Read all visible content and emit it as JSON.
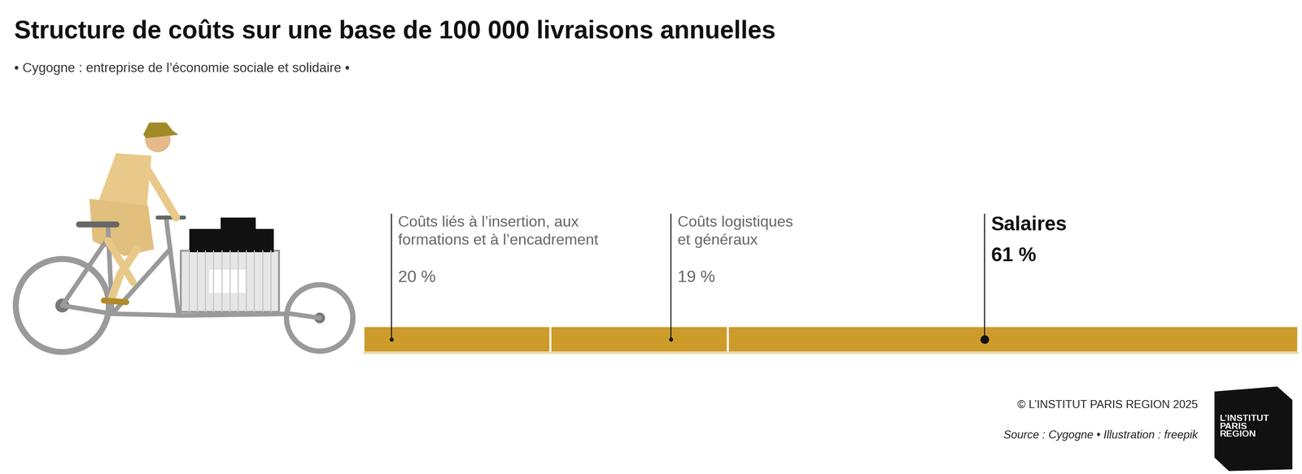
{
  "chart_data": {
    "type": "bar",
    "orientation": "horizontal",
    "stacked": true,
    "title": "Structure de coûts sur une base de 100 000 livraisons annuelles",
    "subtitle": "• Cygogne : entreprise de l’économie sociale et solidaire •",
    "categories": [
      null
    ],
    "series": [
      {
        "name": "Coûts liés à l’insertion, aux\nformations et à l’encadrement",
        "values": [
          20
        ],
        "value_labels": [
          "20 %"
        ]
      },
      {
        "name": "Coûts logistiques\net généraux",
        "values": [
          19
        ],
        "value_labels": [
          "19 %"
        ]
      },
      {
        "name": "Salaires",
        "values": [
          61
        ],
        "value_labels": [
          "61 %"
        ]
      }
    ],
    "color": "#cc9b2a",
    "xlim": [
      0,
      100
    ],
    "data_labels": true,
    "tick_labels": false,
    "grid": false,
    "credit": "© L’INSTITUT PARIS REGION 2025",
    "source": "Source : Cygogne • Illustration : freepik",
    "logo": "L’INSTITUT\nPARIS\nREGION"
  }
}
